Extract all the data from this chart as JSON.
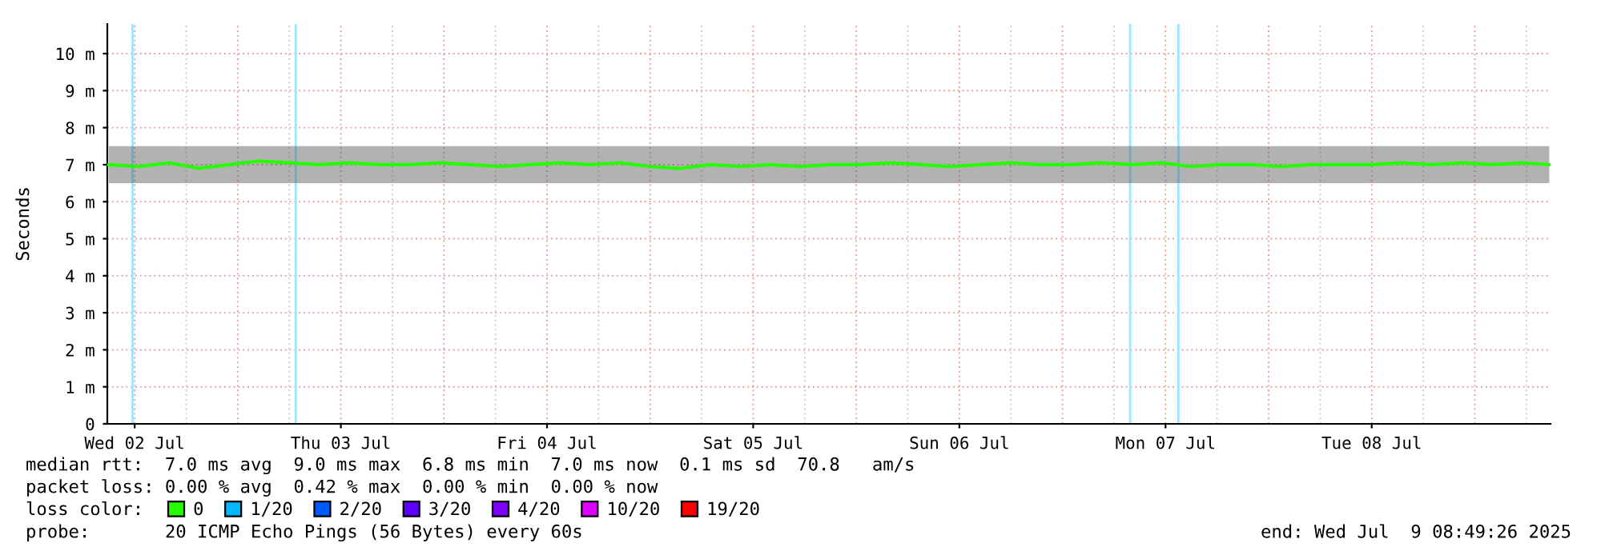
{
  "chart_data": {
    "type": "line",
    "ylabel": "Seconds",
    "x": [
      "2025-07-02T09:00",
      "2025-07-02T12:30",
      "2025-07-02T16:00",
      "2025-07-02T19:30",
      "2025-07-02T23:00",
      "2025-07-03T02:30",
      "2025-07-03T06:00",
      "2025-07-03T09:30",
      "2025-07-03T13:00",
      "2025-07-03T16:30",
      "2025-07-03T20:00",
      "2025-07-03T23:30",
      "2025-07-04T03:00",
      "2025-07-04T06:30",
      "2025-07-04T10:00",
      "2025-07-04T13:30",
      "2025-07-04T17:00",
      "2025-07-04T20:30",
      "2025-07-05T00:00",
      "2025-07-05T03:30",
      "2025-07-05T07:00",
      "2025-07-05T10:30",
      "2025-07-05T14:00",
      "2025-07-05T17:30",
      "2025-07-05T21:00",
      "2025-07-06T00:30",
      "2025-07-06T04:00",
      "2025-07-06T07:30",
      "2025-07-06T11:00",
      "2025-07-06T14:30",
      "2025-07-06T18:00",
      "2025-07-06T21:30",
      "2025-07-07T01:00",
      "2025-07-07T04:30",
      "2025-07-07T08:00",
      "2025-07-07T11:30",
      "2025-07-07T15:00",
      "2025-07-07T18:30",
      "2025-07-07T22:00",
      "2025-07-08T01:30",
      "2025-07-08T05:00",
      "2025-07-08T08:30",
      "2025-07-08T12:00",
      "2025-07-08T15:30",
      "2025-07-08T19:00",
      "2025-07-08T22:30",
      "2025-07-09T02:00",
      "2025-07-09T05:30",
      "2025-07-09T08:40"
    ],
    "series": [
      {
        "name": "0",
        "color": "#26ff00",
        "values": [
          7.0,
          6.95,
          7.05,
          6.9,
          7.0,
          7.1,
          7.05,
          7.0,
          7.05,
          7.0,
          7.0,
          7.05,
          7.0,
          6.95,
          7.0,
          7.05,
          7.0,
          7.05,
          6.95,
          6.9,
          7.0,
          6.95,
          7.0,
          6.95,
          7.0,
          7.0,
          7.05,
          7.0,
          6.95,
          7.0,
          7.05,
          7.0,
          7.0,
          7.05,
          7.0,
          7.05,
          6.95,
          7.0,
          7.0,
          6.95,
          7.0,
          7.0,
          7.0,
          7.05,
          7.0,
          7.05,
          7.0,
          7.05,
          7.0
        ],
        "lower": [
          6.5,
          6.5,
          6.5,
          6.5,
          6.5,
          6.5,
          6.5,
          6.5,
          6.5,
          6.5,
          6.5,
          6.5,
          6.5,
          6.5,
          6.5,
          6.5,
          6.5,
          6.5,
          6.5,
          6.5,
          6.5,
          6.5,
          6.5,
          6.5,
          6.5,
          6.5,
          6.5,
          6.5,
          6.5,
          6.5,
          6.5,
          6.5,
          6.5,
          6.5,
          6.5,
          6.5,
          6.5,
          6.5,
          6.5,
          6.5,
          6.5,
          6.5,
          6.5,
          6.5,
          6.5,
          6.5,
          6.5,
          6.5,
          6.5
        ],
        "upper": [
          7.5,
          7.5,
          7.5,
          7.5,
          7.5,
          7.5,
          7.5,
          7.5,
          7.5,
          7.5,
          7.5,
          7.5,
          7.5,
          7.5,
          7.5,
          7.5,
          7.5,
          7.5,
          7.5,
          7.5,
          7.5,
          7.5,
          7.5,
          7.5,
          7.5,
          7.5,
          7.5,
          7.5,
          7.5,
          7.5,
          7.5,
          7.5,
          7.5,
          7.5,
          7.5,
          7.5,
          7.5,
          7.5,
          7.5,
          7.5,
          7.5,
          7.5,
          7.5,
          7.5,
          7.5,
          7.5,
          7.5,
          7.5,
          7.5
        ]
      },
      {
        "name": "1/20",
        "color": "#00b8ff",
        "values": [
          null,
          null,
          null,
          null,
          null,
          null,
          null,
          null,
          null,
          null,
          null,
          null,
          null,
          null,
          null,
          null,
          null,
          null,
          null,
          null,
          null,
          null,
          null,
          null,
          null,
          null,
          null,
          null,
          null,
          null,
          null,
          null,
          null,
          null,
          null,
          null,
          null,
          null,
          null,
          null,
          null,
          null,
          null,
          null,
          null,
          null,
          null,
          null,
          null
        ]
      },
      {
        "name": "2/20",
        "color": "#0059ff",
        "values": [
          null,
          null,
          null,
          null,
          null,
          null,
          null,
          null,
          null,
          null,
          null,
          null,
          null,
          null,
          null,
          null,
          null,
          null,
          null,
          null,
          null,
          null,
          null,
          null,
          null,
          null,
          null,
          null,
          null,
          null,
          null,
          null,
          null,
          null,
          null,
          null,
          null,
          null,
          null,
          null,
          null,
          null,
          null,
          null,
          null,
          null,
          null,
          null,
          null
        ]
      },
      {
        "name": "3/20",
        "color": "#5e00ff",
        "values": [
          null,
          null,
          null,
          null,
          null,
          null,
          null,
          null,
          null,
          null,
          null,
          null,
          null,
          null,
          null,
          null,
          null,
          null,
          null,
          null,
          null,
          null,
          null,
          null,
          null,
          null,
          null,
          null,
          null,
          null,
          null,
          null,
          null,
          null,
          null,
          null,
          null,
          null,
          null,
          null,
          null,
          null,
          null,
          null,
          null,
          null,
          null,
          null,
          null
        ]
      },
      {
        "name": "4/20",
        "color": "#7e00ff",
        "values": [
          null,
          null,
          null,
          null,
          null,
          null,
          null,
          null,
          null,
          null,
          null,
          null,
          null,
          null,
          null,
          null,
          null,
          null,
          null,
          null,
          null,
          null,
          null,
          null,
          null,
          null,
          null,
          null,
          null,
          null,
          null,
          null,
          null,
          null,
          null,
          null,
          null,
          null,
          null,
          null,
          null,
          null,
          null,
          null,
          null,
          null,
          null,
          null,
          null
        ]
      },
      {
        "name": "10/20",
        "color": "#dd00ff",
        "values": [
          null,
          null,
          null,
          null,
          null,
          null,
          null,
          null,
          null,
          null,
          null,
          null,
          null,
          null,
          null,
          null,
          null,
          null,
          null,
          null,
          null,
          null,
          null,
          null,
          null,
          null,
          null,
          null,
          null,
          null,
          null,
          null,
          null,
          null,
          null,
          null,
          null,
          null,
          null,
          null,
          null,
          null,
          null,
          null,
          null,
          null,
          null,
          null,
          null
        ]
      },
      {
        "name": "19/20",
        "color": "#ff0000",
        "values": [
          null,
          null,
          null,
          null,
          null,
          null,
          null,
          null,
          null,
          null,
          null,
          null,
          null,
          null,
          null,
          null,
          null,
          null,
          null,
          null,
          null,
          null,
          null,
          null,
          null,
          null,
          null,
          null,
          null,
          null,
          null,
          null,
          null,
          null,
          null,
          null,
          null,
          null,
          null,
          null,
          null,
          null,
          null,
          null,
          null,
          null,
          null,
          null,
          null
        ]
      }
    ],
    "xlim": [
      "2025-07-02T08:49",
      "2025-07-09T08:49"
    ],
    "xticks": [
      {
        "value": "2025-07-02T12:00",
        "label": "Wed 02 Jul"
      },
      {
        "value": "2025-07-03T12:00",
        "label": "Thu 03 Jul"
      },
      {
        "value": "2025-07-04T12:00",
        "label": "Fri 04 Jul"
      },
      {
        "value": "2025-07-05T12:00",
        "label": "Sat 05 Jul"
      },
      {
        "value": "2025-07-06T12:00",
        "label": "Sun 06 Jul"
      },
      {
        "value": "2025-07-07T12:00",
        "label": "Mon 07 Jul"
      },
      {
        "value": "2025-07-08T12:00",
        "label": "Tue 08 Jul"
      }
    ],
    "ylim": [
      0,
      10.8
    ],
    "yticks": [
      0,
      {
        "value": 1,
        "label": "1 m"
      },
      {
        "value": 2,
        "label": "2 m"
      },
      {
        "value": 3,
        "label": "3 m"
      },
      {
        "value": 4,
        "label": "4 m"
      },
      {
        "value": 5,
        "label": "5 m"
      },
      {
        "value": 6,
        "label": "6 m"
      },
      {
        "value": 7,
        "label": "7 m"
      },
      {
        "value": 8,
        "label": "8 m"
      },
      {
        "value": 9,
        "label": "9 m"
      },
      {
        "value": 10,
        "label": "10 m"
      }
    ],
    "ref_lines": [
      {
        "axis": "x",
        "value": "2025-07-02T11:45",
        "color": "#9ee6ff"
      },
      {
        "axis": "x",
        "value": "2025-07-03T06:45",
        "color": "#9ee6ff"
      },
      {
        "axis": "x",
        "value": "2025-07-07T07:53",
        "color": "#9ee6ff"
      },
      {
        "axis": "x",
        "value": "2025-07-07T13:30",
        "color": "#9ee6ff"
      }
    ],
    "grid": true,
    "legend": "bottom",
    "legend_title": "loss color:",
    "annotations": [
      "median rtt:  7.0 ms avg  9.0 ms max  6.8 ms min  7.0 ms now  0.1 ms sd  70.8   am/s",
      "packet loss: 0.00 % avg  0.42 % max  0.00 % min  0.00 % now",
      "probe:       20 ICMP Echo Pings (56 Bytes) every 60s",
      "end: Wed Jul  9 08:49:26 2025"
    ]
  }
}
